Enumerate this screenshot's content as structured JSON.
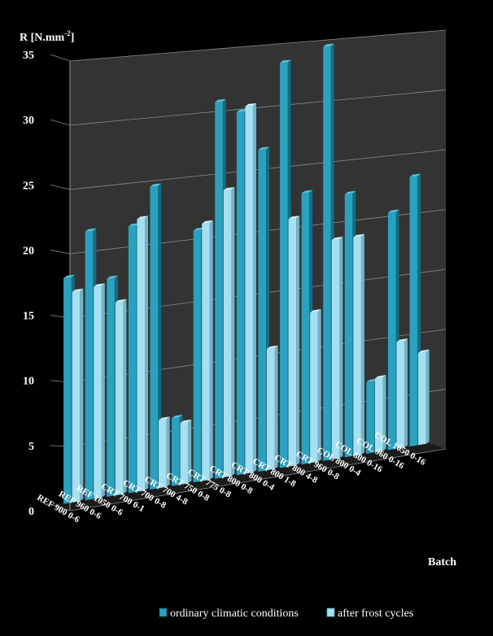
{
  "chart_data": {
    "type": "bar",
    "title": "",
    "ylabel": "R [N.mm",
    "ylabel_sup": "-2",
    "ylabel_close": "]",
    "xlabel": "Batch",
    "ylim": [
      0,
      35
    ],
    "yticks": [
      "0",
      "5",
      "10",
      "15",
      "20",
      "25",
      "30",
      "35"
    ],
    "grid": true,
    "legend_position": "bottom",
    "categories": [
      "REF 900 0-6",
      "REF 960 0-6",
      "REF 1050 0-6",
      "CRT 700 0-1",
      "CRT 700 0-8",
      "CRT 700 4-8",
      "CRT 750 0-8",
      "CRT 775 0-8",
      "CRT 800 0-8",
      "CRT 800 0-4",
      "CRT 800 1-8",
      "CRT 800 4-8",
      "CRT 960 0-8",
      "COL 800 0-4",
      "COL 800 0-16",
      "COL 960 0-16",
      "COL 1050 0-16"
    ],
    "series": [
      {
        "name": "ordinary climatic conditions",
        "color": "#2aa2bf",
        "values": [
          18.0,
          21.5,
          17.5,
          21.5,
          24.5,
          5.5,
          20.5,
          30.8,
          29.8,
          26.5,
          33.5,
          22.5,
          34.5,
          22.0,
          6.0,
          20.0,
          22.8
        ]
      },
      {
        "name": "after frost cycles",
        "color": "#a6dff0",
        "values": [
          16.8,
          17.0,
          15.5,
          22.0,
          5.5,
          5.0,
          21.0,
          23.5,
          30.2,
          10.0,
          20.5,
          12.5,
          18.3,
          18.3,
          6.2,
          9.0,
          7.8
        ]
      }
    ]
  }
}
